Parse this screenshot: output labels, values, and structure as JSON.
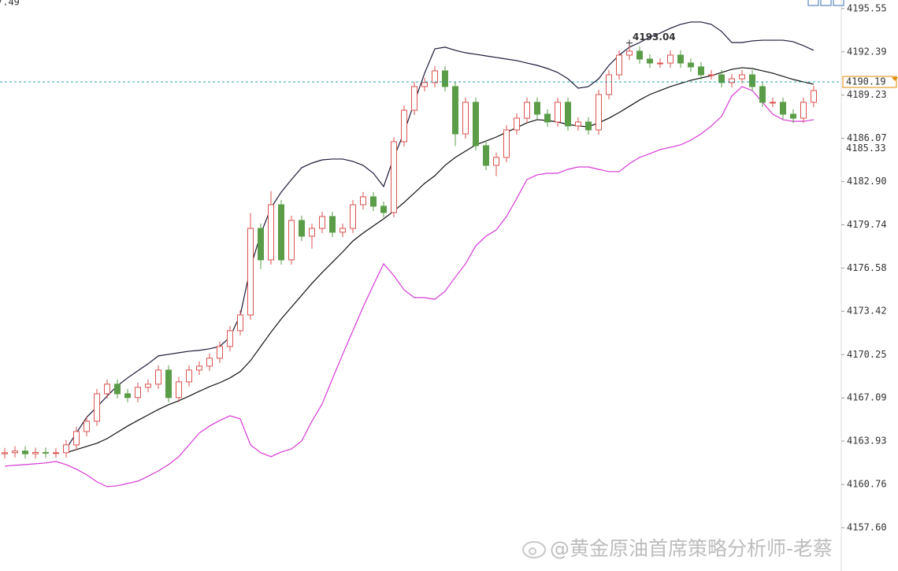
{
  "chart_data": {
    "type": "candlestick",
    "open": [
      4163.0,
      4163.08,
      4163.2,
      4163.0,
      4163.1,
      4163.05,
      4163.08,
      4163.65,
      4164.63,
      4165.38,
      4167.39,
      4168.09,
      4167.39,
      4167.11,
      4167.86,
      4168.09,
      4169.12,
      4167.11,
      4168.26,
      4169.12,
      4169.41,
      4169.99,
      4170.85,
      4172.0,
      4173.15,
      4179.48,
      4177.18,
      4181.21,
      4177.18,
      4180.06,
      4178.91,
      4179.48,
      4180.35,
      4179.2,
      4179.48,
      4181.21,
      4181.79,
      4181.1,
      4180.64,
      4185.82,
      4188.12,
      4189.85,
      4190.14,
      4191.0,
      4189.85,
      4186.39,
      4188.7,
      4185.53,
      4184.09,
      4184.67,
      4186.68,
      4187.54,
      4188.7,
      4187.83,
      4187.26,
      4188.7,
      4186.97,
      4187.26,
      4186.68,
      4189.27,
      4190.71,
      4192.15,
      4192.44,
      4191.86,
      4191.57,
      4191.57,
      4192.15,
      4191.57,
      4191.29,
      4190.71,
      4190.71,
      4190.14,
      4190.42,
      4190.71,
      4189.85,
      4188.7,
      4188.7,
      4187.83,
      4187.54,
      4188.7
    ],
    "high": [
      4163.43,
      4163.55,
      4163.55,
      4163.45,
      4163.45,
      4163.43,
      4164.0,
      4164.98,
      4165.73,
      4167.74,
      4168.44,
      4168.44,
      4167.74,
      4168.21,
      4168.44,
      4169.47,
      4169.47,
      4168.61,
      4169.47,
      4169.76,
      4170.34,
      4171.2,
      4172.35,
      4173.5,
      4180.6,
      4179.83,
      4182.2,
      4181.56,
      4180.41,
      4180.41,
      4179.83,
      4180.7,
      4180.7,
      4179.83,
      4181.56,
      4182.14,
      4182.14,
      4181.45,
      4186.17,
      4188.47,
      4190.2,
      4190.49,
      4191.35,
      4191.35,
      4190.2,
      4189.05,
      4189.05,
      4185.88,
      4185.02,
      4187.03,
      4187.89,
      4189.05,
      4189.05,
      4188.18,
      4189.05,
      4189.05,
      4187.61,
      4187.61,
      4189.62,
      4191.06,
      4192.5,
      4193.04,
      4192.79,
      4192.21,
      4191.92,
      4192.5,
      4192.5,
      4191.92,
      4191.64,
      4191.06,
      4191.06,
      4190.77,
      4191.06,
      4191.06,
      4190.2,
      4189.05,
      4189.05,
      4188.18,
      4189.05,
      4189.91
    ],
    "low": [
      4162.65,
      4162.73,
      4162.65,
      4162.65,
      4162.7,
      4162.7,
      4162.73,
      4163.3,
      4164.28,
      4165.03,
      4167.04,
      4167.04,
      4166.76,
      4166.76,
      4167.51,
      4167.74,
      4166.76,
      4166.76,
      4167.91,
      4168.77,
      4169.06,
      4169.64,
      4170.5,
      4171.65,
      4172.8,
      4176.5,
      4176.83,
      4176.83,
      4176.83,
      4178.56,
      4178.0,
      4179.13,
      4178.85,
      4178.85,
      4179.13,
      4180.86,
      4180.75,
      4180.29,
      4180.29,
      4185.47,
      4187.77,
      4189.5,
      4189.79,
      4189.5,
      4185.5,
      4186.04,
      4185.18,
      4183.74,
      4183.3,
      4184.32,
      4186.33,
      4187.19,
      4187.48,
      4186.91,
      4186.91,
      4186.62,
      4186.62,
      4186.33,
      4186.33,
      4188.92,
      4190.36,
      4191.8,
      4191.51,
      4191.22,
      4191.22,
      4191.22,
      4191.22,
      4190.94,
      4190.36,
      4190.36,
      4189.79,
      4189.79,
      4190.07,
      4189.5,
      4188.35,
      4188.35,
      4187.48,
      4187.19,
      4187.19,
      4188.35
    ],
    "close": [
      4163.08,
      4163.2,
      4163.0,
      4163.1,
      4163.05,
      4163.08,
      4163.65,
      4164.63,
      4165.38,
      4167.39,
      4168.09,
      4167.39,
      4167.11,
      4167.86,
      4168.09,
      4169.12,
      4167.11,
      4168.26,
      4169.12,
      4169.41,
      4169.99,
      4170.85,
      4172.0,
      4173.15,
      4179.48,
      4177.18,
      4181.21,
      4177.18,
      4180.06,
      4178.91,
      4179.48,
      4180.35,
      4179.2,
      4179.48,
      4181.21,
      4181.79,
      4181.1,
      4180.64,
      4185.82,
      4188.12,
      4189.85,
      4190.14,
      4191.0,
      4189.85,
      4186.39,
      4188.7,
      4185.53,
      4184.09,
      4184.67,
      4186.68,
      4187.54,
      4188.7,
      4187.83,
      4187.26,
      4188.7,
      4186.97,
      4187.26,
      4186.68,
      4189.27,
      4190.71,
      4192.15,
      4192.44,
      4191.86,
      4191.57,
      4191.57,
      4192.15,
      4191.57,
      4191.29,
      4190.71,
      4190.71,
      4190.14,
      4190.42,
      4190.71,
      4189.85,
      4188.7,
      4188.7,
      4187.83,
      4187.54,
      4188.7,
      4189.56
    ],
    "up_color": "#d9534f",
    "down_color": "#5a9c47",
    "bands": [
      {
        "color": "#1a1a3a",
        "values": [
          null,
          null,
          null,
          null,
          null,
          null,
          4163.36,
          4164.52,
          4165.67,
          4166.42,
          4167.22,
          4167.97,
          4168.55,
          4169.07,
          4169.58,
          4170.16,
          4170.27,
          4170.39,
          4170.5,
          4170.56,
          4170.68,
          4170.85,
          4171.54,
          4173.15,
          4176.61,
          4179.08,
          4180.98,
          4182.13,
          4183.05,
          4183.92,
          4184.26,
          4184.49,
          4184.55,
          4184.55,
          4184.38,
          4184.09,
          4183.51,
          4182.54,
          4184.67,
          4186.51,
          4188.7,
          4190.83,
          4192.61,
          4192.73,
          4192.5,
          4192.32,
          4192.21,
          4192.09,
          4191.98,
          4191.86,
          4191.75,
          4191.57,
          4191.4,
          4191.17,
          4190.88,
          4190.42,
          4189.73,
          4189.85,
          4190.42,
          4191.4,
          4192.15,
          4192.73,
          4193.07,
          4193.47,
          4193.76,
          4194.11,
          4194.4,
          4194.57,
          4194.57,
          4194.4,
          4193.88,
          4193.07,
          4193.07,
          4193.19,
          4193.24,
          4193.24,
          4193.24,
          4193.13,
          4192.84,
          4192.5
        ]
      },
      {
        "color": "#111111",
        "values": [
          null,
          null,
          null,
          null,
          null,
          null,
          4163.08,
          4163.31,
          4163.54,
          4163.77,
          4164.11,
          4164.57,
          4165.03,
          4165.44,
          4165.84,
          4166.24,
          4166.59,
          4166.88,
          4167.22,
          4167.57,
          4167.91,
          4168.2,
          4168.55,
          4169.01,
          4169.81,
          4170.85,
          4171.89,
          4172.86,
          4173.73,
          4174.59,
          4175.46,
          4176.26,
          4177.01,
          4177.76,
          4178.56,
          4179.14,
          4179.66,
          4180.18,
          4180.75,
          4181.38,
          4182.07,
          4182.77,
          4183.33,
          4184.09,
          4184.67,
          4185.13,
          4185.59,
          4185.87,
          4186.16,
          4186.51,
          4186.85,
          4187.2,
          4187.43,
          4187.37,
          4187.26,
          4187.08,
          4186.97,
          4186.91,
          4187.2,
          4187.54,
          4187.95,
          4188.41,
          4188.87,
          4189.27,
          4189.56,
          4189.85,
          4190.08,
          4190.31,
          4190.48,
          4190.65,
          4190.88,
          4191.11,
          4191.23,
          4191.17,
          4191.0,
          4190.83,
          4190.6,
          4190.37,
          4190.19,
          4190.02
        ]
      },
      {
        "color": "#d63ad6",
        "values": [
          4162.1,
          4162.16,
          4162.21,
          4162.27,
          4162.33,
          4162.44,
          4162.21,
          4161.87,
          4161.47,
          4160.95,
          4160.6,
          4160.66,
          4160.83,
          4161.0,
          4161.35,
          4161.75,
          4162.21,
          4162.79,
          4163.65,
          4164.52,
          4165.03,
          4165.44,
          4165.78,
          4165.55,
          4163.65,
          4163.08,
          4162.79,
          4163.13,
          4163.36,
          4163.94,
          4165.38,
          4166.65,
          4168.48,
          4170.27,
          4172.0,
          4173.73,
          4175.34,
          4176.89,
          4176.03,
          4174.99,
          4174.42,
          4174.42,
          4174.3,
          4174.88,
          4175.92,
          4176.89,
          4178.21,
          4178.91,
          4179.37,
          4180.35,
          4181.67,
          4183.05,
          4183.4,
          4183.51,
          4183.51,
          4183.8,
          4183.97,
          4183.97,
          4183.8,
          4183.63,
          4183.63,
          4184.21,
          4184.67,
          4184.95,
          4185.24,
          4185.41,
          4185.59,
          4185.93,
          4186.39,
          4186.97,
          4187.67,
          4189.16,
          4189.85,
          4189.56,
          4188.7,
          4187.83,
          4187.43,
          4187.31,
          4187.31,
          4187.43
        ]
      }
    ],
    "ylim": [
      4154.43,
      4196.18
    ],
    "yticks": [
      4195.55,
      4192.39,
      4189.23,
      4186.07,
      {
        "value": 4182.9,
        "label": "4182.90"
      },
      4179.74,
      4176.58,
      4173.42,
      4170.25,
      4167.09,
      4163.93,
      4160.76,
      {
        "value": 4157.6,
        "label": "4157.60"
      }
    ],
    "high_marker": {
      "index": 61,
      "value": 4193.04,
      "color": "#d9534f"
    },
    "current_price": {
      "value": 4190.19,
      "color": "#2a9fb0",
      "label_color": "#e08a00"
    },
    "price_label": {
      "value": 4185.33,
      "color": "#e08a00"
    },
    "corner_text": {
      "text": "7.49",
      "color": "#d63ad6"
    },
    "watermark": "@黄金原油首席策略分析师-老蔡"
  }
}
